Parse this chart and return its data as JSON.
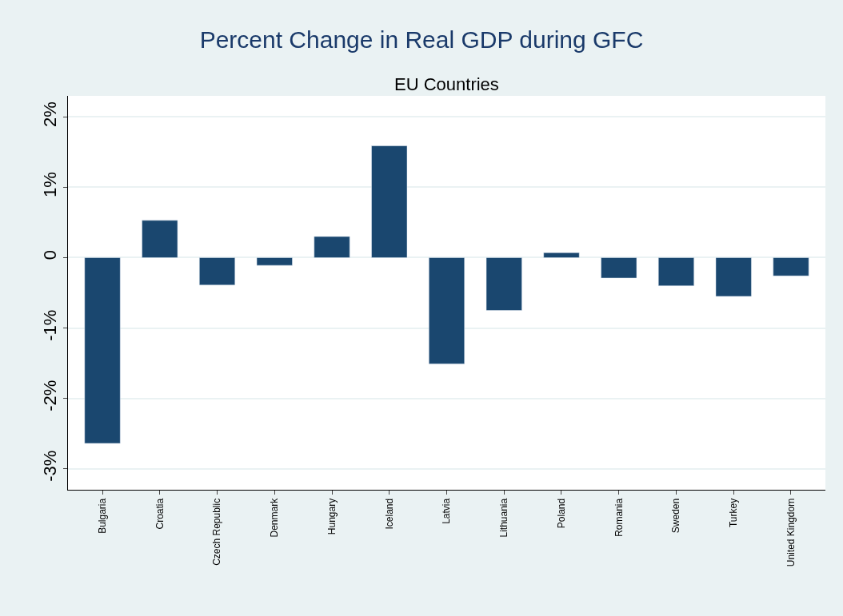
{
  "chart_data": {
    "type": "bar",
    "title": "Percent Change in Real GDP during GFC",
    "subtitle": "EU Countries",
    "categories": [
      "Bulgaria",
      "Croatia",
      "Czech Republic",
      "Denmark",
      "Hungary",
      "Iceland",
      "Latvia",
      "Lithuania",
      "Poland",
      "Romania",
      "Sweden",
      "Turkey",
      "United Kingdom"
    ],
    "values": [
      -2.64,
      0.53,
      -0.39,
      -0.11,
      0.3,
      1.59,
      -1.51,
      -0.75,
      0.07,
      -0.29,
      -0.4,
      -0.55,
      -0.26
    ],
    "color": "#1a476f",
    "ylim": [
      -3.3,
      2.3
    ],
    "yticks": [
      {
        "value": -3,
        "label": "-3%"
      },
      {
        "value": -2,
        "label": "-2%"
      },
      {
        "value": -1,
        "label": "-1%"
      },
      0,
      {
        "value": 1,
        "label": "1%"
      },
      {
        "value": 2,
        "label": "2%"
      }
    ],
    "grid": "y"
  }
}
